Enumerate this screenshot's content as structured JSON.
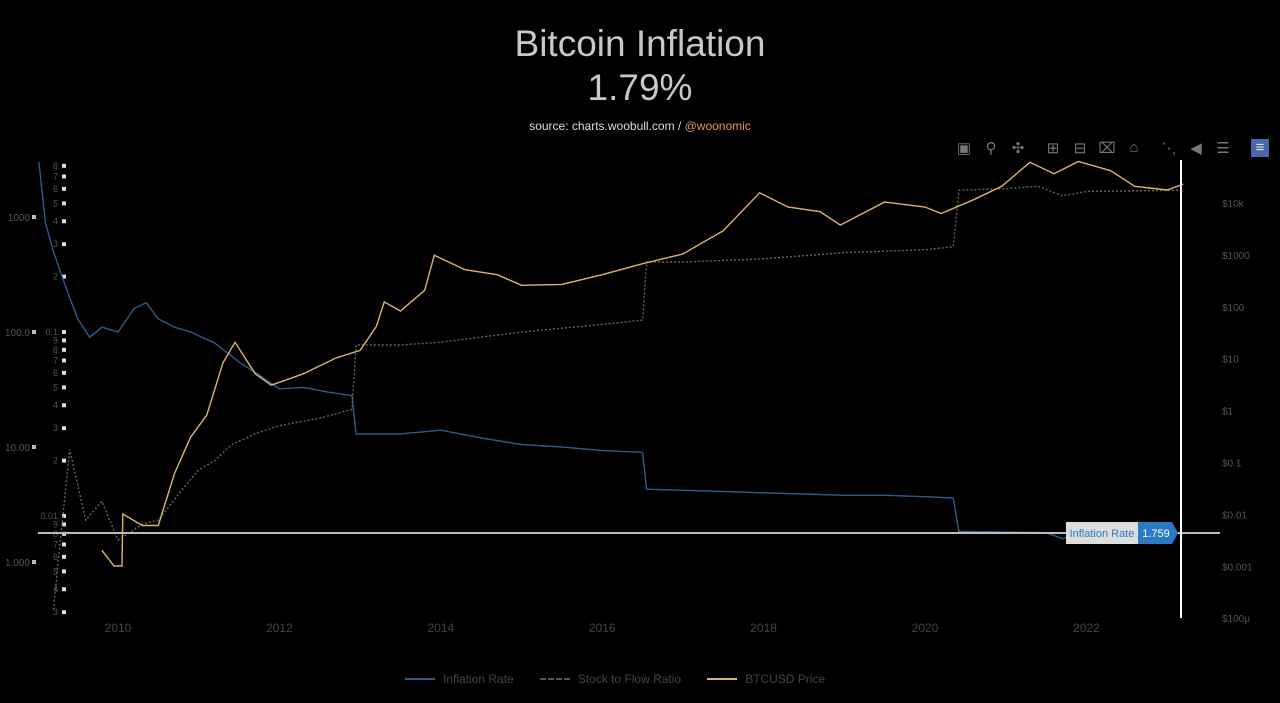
{
  "title": "Bitcoin Inflation",
  "subtitle": "1.79%",
  "source": {
    "prefix": "source: charts.woobull.com / ",
    "handle": "@woonomic"
  },
  "toolbar": [
    "camera-icon",
    "zoom-icon",
    "pan-icon",
    "zoom-in-icon",
    "zoom-out-icon",
    "autoscale-icon",
    "home-icon",
    "spike-lines-icon",
    "hover-closest-icon",
    "hover-compare-icon",
    "plotly-logo-icon"
  ],
  "tooltip": {
    "label": "Inflation Rate",
    "value": "1.759"
  },
  "colors": {
    "inflation": "#2a5d8f",
    "s2f": "#666666",
    "price": "#e0b36a",
    "tooltip": "#2a7ac4"
  },
  "chart_data": {
    "type": "line",
    "title": "Bitcoin Inflation",
    "subtitle": "1.79%",
    "x_ticks": [
      "2010",
      "2012",
      "2014",
      "2016",
      "2018",
      "2020",
      "2022"
    ],
    "y_left_ticks": [
      "1000",
      "100.0",
      "10.00",
      "1.000"
    ],
    "y_s2f_ticks": [
      "8",
      "7",
      "6",
      "5",
      "4",
      "3",
      "2",
      "0.1",
      "9",
      "8",
      "7",
      "6",
      "5",
      "4",
      "3",
      "2",
      "0.01",
      "9",
      "8",
      "7",
      "6",
      "5",
      "4",
      "3"
    ],
    "y_right_ticks": [
      "$10k",
      "$1000",
      "$100",
      "$10",
      "$1",
      "$0.1",
      "$0.01",
      "$0.001",
      "$100μ"
    ],
    "scale": "log",
    "legend_position": "bottom",
    "grid": false,
    "series": [
      {
        "name": "Inflation Rate",
        "x": [
          2009.02,
          2009.1,
          2009.2,
          2009.35,
          2009.5,
          2009.65,
          2009.8,
          2010.0,
          2010.2,
          2010.35,
          2010.5,
          2010.7,
          2010.9,
          2011.2,
          2011.5,
          2011.8,
          2012.0,
          2012.3,
          2012.6,
          2012.9,
          2012.95,
          2013.5,
          2014.0,
          2014.5,
          2015.0,
          2015.5,
          2016.0,
          2016.5,
          2016.55,
          2017.0,
          2017.5,
          2018.0,
          2018.5,
          2019.0,
          2019.5,
          2020.0,
          2020.35,
          2020.42,
          2021.0,
          2021.5,
          2021.7,
          2022.0,
          2022.5,
          2023.2
        ],
        "values": [
          3000,
          900,
          500,
          250,
          130,
          90,
          110,
          100,
          160,
          180,
          130,
          110,
          100,
          80,
          55,
          40,
          32,
          33,
          30,
          28,
          13,
          13,
          14,
          12,
          10.5,
          10,
          9.3,
          9,
          4.3,
          4.2,
          4.1,
          4,
          3.9,
          3.8,
          3.8,
          3.7,
          3.6,
          1.85,
          1.82,
          1.8,
          1.6,
          1.8,
          1.78,
          1.76
        ]
      },
      {
        "name": "Stock to Flow Ratio",
        "x": [
          2009.2,
          2009.4,
          2009.6,
          2009.8,
          2010.0,
          2010.3,
          2010.5,
          2010.8,
          2011.0,
          2011.2,
          2011.4,
          2011.7,
          2012.0,
          2012.5,
          2012.9,
          2012.95,
          2013.5,
          2014.0,
          2015.0,
          2016.0,
          2016.5,
          2016.55,
          2017.0,
          2018.0,
          2019.0,
          2020.0,
          2020.35,
          2020.42,
          2021.0,
          2021.4,
          2021.7,
          2022.0,
          2023.2
        ],
        "values": [
          0.0031,
          0.023,
          0.0095,
          0.012,
          0.0074,
          0.009,
          0.0095,
          0.014,
          0.0178,
          0.02,
          0.0243,
          0.028,
          0.031,
          0.034,
          0.038,
          0.085,
          0.085,
          0.088,
          0.1,
          0.11,
          0.116,
          0.24,
          0.24,
          0.25,
          0.27,
          0.28,
          0.29,
          0.59,
          0.6,
          0.62,
          0.55,
          0.58,
          0.59
        ]
      },
      {
        "name": "BTCUSD Price",
        "x": [
          2009.8,
          2009.95,
          2010.05,
          2010.06,
          2010.3,
          2010.5,
          2010.7,
          2010.9,
          2011.1,
          2011.3,
          2011.45,
          2011.7,
          2011.9,
          2012.3,
          2012.7,
          2013.0,
          2013.2,
          2013.3,
          2013.5,
          2013.8,
          2013.92,
          2014.3,
          2014.7,
          2015.0,
          2015.5,
          2016.0,
          2016.5,
          2017.0,
          2017.5,
          2017.95,
          2018.3,
          2018.7,
          2018.95,
          2019.5,
          2020.0,
          2020.2,
          2020.6,
          2020.95,
          2021.3,
          2021.6,
          2021.9,
          2022.3,
          2022.6,
          2023.0,
          2023.2
        ],
        "values": [
          0.002,
          0.001,
          0.001,
          0.01,
          0.006,
          0.006,
          0.06,
          0.3,
          0.8,
          8,
          20,
          5,
          3,
          5,
          10,
          14,
          40,
          120,
          80,
          200,
          950,
          500,
          400,
          250,
          260,
          400,
          650,
          1000,
          2800,
          15000,
          8000,
          6500,
          3600,
          10000,
          8000,
          6000,
          11000,
          20000,
          58000,
          35000,
          60000,
          40000,
          20000,
          17000,
          22000
        ]
      }
    ]
  },
  "legend": [
    "Inflation Rate",
    "Stock to Flow Ratio",
    "BTCUSD Price"
  ]
}
